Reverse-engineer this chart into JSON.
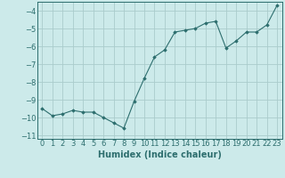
{
  "x": [
    0,
    1,
    2,
    3,
    4,
    5,
    6,
    7,
    8,
    9,
    10,
    11,
    12,
    13,
    14,
    15,
    16,
    17,
    18,
    19,
    20,
    21,
    22,
    23
  ],
  "y": [
    -9.5,
    -9.9,
    -9.8,
    -9.6,
    -9.7,
    -9.7,
    -10.0,
    -10.3,
    -10.6,
    -9.1,
    -7.8,
    -6.6,
    -6.2,
    -5.2,
    -5.1,
    -5.0,
    -4.7,
    -4.6,
    -6.1,
    -5.7,
    -5.2,
    -5.2,
    -4.8,
    -3.7
  ],
  "xlabel": "Humidex (Indice chaleur)",
  "ylim": [
    -11.2,
    -3.5
  ],
  "xlim": [
    -0.5,
    23.5
  ],
  "yticks": [
    -11,
    -10,
    -9,
    -8,
    -7,
    -6,
    -5,
    -4
  ],
  "xticks": [
    0,
    1,
    2,
    3,
    4,
    5,
    6,
    7,
    8,
    9,
    10,
    11,
    12,
    13,
    14,
    15,
    16,
    17,
    18,
    19,
    20,
    21,
    22,
    23
  ],
  "line_color": "#2d6e6e",
  "marker": "D",
  "marker_size": 1.8,
  "bg_color": "#cceaea",
  "grid_color": "#aacccc",
  "axes_color": "#2d6e6e",
  "tick_label_color": "#2d6e6e",
  "xlabel_color": "#2d6e6e",
  "xlabel_fontsize": 7,
  "tick_fontsize": 6
}
